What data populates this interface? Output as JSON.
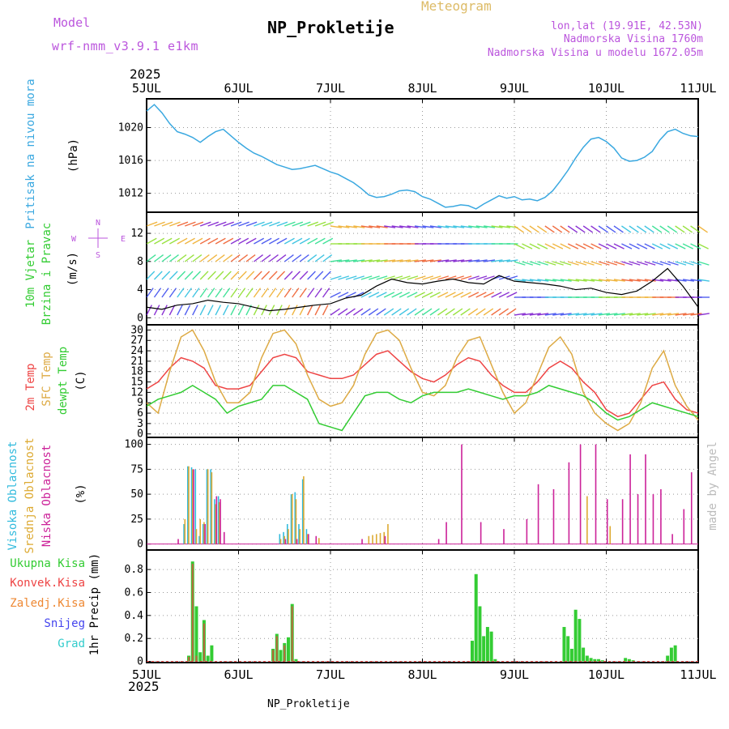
{
  "header": {
    "model_label": "Model",
    "model_name": "wrf-nmm_v3.9.1  e1km",
    "app_title": "Meteogram",
    "station_title": "NP_Prokletije",
    "lonlat": "lon,lat (19.91E, 42.53N)",
    "altitude": "Nadmorska Visina 1760m",
    "model_altitude": "Nadmorska Visina u modelu 1672.05m",
    "year_top": "2025",
    "year_bottom": "2025",
    "footer_station": "NP_Prokletije",
    "watermark": "made by Angel"
  },
  "time_axis": {
    "tick_labels": [
      "5JUL",
      "6JUL",
      "7JUL",
      "8JUL",
      "9JUL",
      "10JUL",
      "11JUL"
    ]
  },
  "panel_labels": {
    "pressure": {
      "name": "Pritisak na nivou mora",
      "unit": "(hPa)"
    },
    "wind": {
      "name1": "10m Vjetar",
      "name2": "Brzina i Pravac",
      "unit": "(m/s)",
      "compass_n": "N",
      "compass_s": "S",
      "compass_w": "W",
      "compass_e": "E"
    },
    "temp": {
      "t2m": "2m Temp",
      "sfc": "SFC Temp",
      "dew": "dewpt Temp",
      "unit": "(C)"
    },
    "cloud": {
      "high": "Visoka Oblacnost",
      "mid": "Srednja Oblacnost",
      "low": "Niska Oblacnost",
      "unit": "(%)"
    },
    "precip": {
      "total": "Ukupna Kisa",
      "conv": "Konvek.Kisa",
      "frozen": "Zaledj.Kisa",
      "snow": "Snijeg",
      "hail": "Grad",
      "axis": "1hr Precip (mm)"
    }
  },
  "colors": {
    "pressure": "#3aa8e0",
    "t2m": "#ee4444",
    "sfc": "#ddaa44",
    "dew": "#33cc33",
    "high_cloud": "#33bbdd",
    "mid_cloud": "#ddaa33",
    "low_cloud": "#cc2299",
    "precip_total": "#33cc33",
    "precip_conv": "#ee4444",
    "precip_frozen": "#ee8833",
    "snow": "#4444ee",
    "hail": "#33cccc",
    "model": "#bb55dd",
    "title_orange": "#ddbb66",
    "watermark": "#bbbbbb"
  },
  "chart_data": [
    {
      "type": "line",
      "title": "",
      "ylabel": "Pritisak na nivou mora (hPa)",
      "ylim": [
        1009.7,
        1023.5
      ],
      "yticks": [
        "1012",
        "1016",
        "1020"
      ],
      "x": [
        0,
        2,
        4,
        6,
        8,
        10,
        12,
        14,
        16,
        18,
        20,
        22,
        24,
        26,
        28,
        30,
        32,
        34,
        36,
        38,
        40,
        42,
        44,
        46,
        48,
        50,
        52,
        54,
        56,
        58,
        60,
        62,
        64,
        66,
        68,
        70,
        72,
        74,
        76,
        78,
        80,
        82,
        84,
        86,
        88,
        90,
        92,
        94,
        96,
        98,
        100,
        102,
        104,
        106,
        108,
        110,
        112,
        114,
        116,
        118,
        120,
        122,
        124,
        126,
        128,
        130,
        132,
        134,
        136,
        138,
        140,
        142,
        144
      ],
      "series": [
        {
          "values": [
            1022,
            1022.8,
            1021.8,
            1020.5,
            1019.5,
            1019.2,
            1018.8,
            1018.2,
            1018.9,
            1019.5,
            1019.8,
            1019,
            1018.2,
            1017.5,
            1016.9,
            1016.5,
            1016,
            1015.5,
            1015.2,
            1014.9,
            1015,
            1015.2,
            1015.4,
            1015,
            1014.6,
            1014.3,
            1013.8,
            1013.3,
            1012.6,
            1011.8,
            1011.5,
            1011.6,
            1011.9,
            1012.3,
            1012.4,
            1012.2,
            1011.6,
            1011.3,
            1010.8,
            1010.3,
            1010.4,
            1010.6,
            1010.5,
            1010.1,
            1010.7,
            1011.2,
            1011.7,
            1011.4,
            1011.6,
            1011.2,
            1011.3,
            1011.1,
            1011.5,
            1012.3,
            1013.5,
            1014.8,
            1016.3,
            1017.6,
            1018.6,
            1018.8,
            1018.3,
            1017.5,
            1016.3,
            1015.9,
            1016,
            1016.4,
            1017.1,
            1018.5,
            1019.5,
            1019.8,
            1019.3,
            1019,
            1018.9
          ]
        }
      ]
    },
    {
      "type": "line",
      "title": "",
      "ylabel": "10m Vjetar Brzina i Pravac (m/s)",
      "ylim": [
        -1,
        15
      ],
      "yticks": [
        "0",
        "4",
        "8",
        "12"
      ],
      "x": [
        0,
        4,
        8,
        12,
        16,
        20,
        24,
        28,
        32,
        36,
        40,
        44,
        48,
        52,
        56,
        60,
        64,
        68,
        72,
        76,
        80,
        84,
        88,
        92,
        96,
        100,
        104,
        108,
        112,
        116,
        120,
        124,
        128,
        132,
        136,
        140,
        144
      ],
      "series": [
        {
          "name": "Brzina",
          "values": [
            1.5,
            1.2,
            1.8,
            2.0,
            2.5,
            2.2,
            2.0,
            1.5,
            1.0,
            1.2,
            1.5,
            1.8,
            2.0,
            2.8,
            3.2,
            4.5,
            5.5,
            5.0,
            4.8,
            5.2,
            5.5,
            5.0,
            4.8,
            6.0,
            5.2,
            5.0,
            4.8,
            4.5,
            4.0,
            4.2,
            3.6,
            3.3,
            3.8,
            5.2,
            7.0,
            4.5,
            1.5
          ]
        }
      ]
    },
    {
      "type": "line",
      "title": "",
      "ylabel": "2m Temp, SFC Temp, dewpt Temp (C)",
      "ylim": [
        -1,
        31.5
      ],
      "yticks": [
        "0",
        "3",
        "6",
        "9",
        "12",
        "15",
        "18",
        "21",
        "24",
        "27",
        "30"
      ],
      "x": [
        0,
        3,
        6,
        9,
        12,
        15,
        18,
        21,
        24,
        27,
        30,
        33,
        36,
        39,
        42,
        45,
        48,
        51,
        54,
        57,
        60,
        63,
        66,
        69,
        72,
        75,
        78,
        81,
        84,
        87,
        90,
        93,
        96,
        99,
        102,
        105,
        108,
        111,
        114,
        117,
        120,
        123,
        126,
        129,
        132,
        135,
        138,
        141,
        144
      ],
      "series": [
        {
          "name": "2m Temp",
          "values": [
            13,
            15,
            19,
            22,
            21,
            19,
            14,
            13,
            13,
            14,
            18,
            22,
            23,
            22,
            18,
            17,
            16,
            16,
            17,
            20,
            23,
            24,
            21,
            18,
            16,
            15,
            17,
            20,
            22,
            21,
            17,
            14,
            12,
            12,
            15,
            19,
            21,
            19,
            15,
            12,
            7,
            5,
            6,
            10,
            14,
            15,
            10,
            7,
            6
          ]
        },
        {
          "name": "SFC Temp",
          "values": [
            9,
            6,
            18,
            28,
            30,
            24,
            15,
            9,
            9,
            12,
            22,
            29,
            30,
            26,
            17,
            10,
            8,
            9,
            14,
            23,
            29,
            30,
            27,
            19,
            12,
            11,
            14,
            22,
            27,
            28,
            20,
            12,
            6,
            9,
            17,
            25,
            28,
            23,
            12,
            6,
            3,
            1,
            3,
            9,
            19,
            24,
            14,
            8,
            4
          ]
        },
        {
          "name": "dewpt Temp",
          "values": [
            8,
            10,
            11,
            12,
            14,
            12,
            10,
            6,
            8,
            9,
            10,
            14,
            14,
            12,
            10,
            3,
            2,
            1,
            6,
            11,
            12,
            12,
            10,
            9,
            11,
            12,
            12,
            12,
            13,
            12,
            11,
            10,
            11,
            11,
            12,
            14,
            13,
            12,
            11,
            9,
            6,
            4,
            5,
            7,
            9,
            8,
            7,
            6,
            5
          ]
        }
      ]
    },
    {
      "type": "bar",
      "title": "",
      "ylabel": "Oblacnost (%)",
      "ylim": [
        -6,
        107
      ],
      "yticks": [
        "0",
        "25",
        "50",
        "75",
        "100"
      ],
      "series": [
        {
          "name": "Visoka Oblacnost",
          "x": [
            10,
            11,
            12,
            13,
            14,
            15,
            16,
            17,
            18,
            19,
            35,
            36,
            37,
            38,
            39,
            40,
            41,
            42
          ],
          "values": [
            20,
            78,
            77,
            75,
            8,
            20,
            75,
            75,
            45,
            48,
            10,
            12,
            20,
            50,
            52,
            20,
            65,
            15
          ]
        },
        {
          "name": "Srednja Oblacnost",
          "x": [
            10,
            11,
            12,
            13,
            14,
            15,
            16,
            17,
            18,
            19,
            35,
            36,
            37,
            38,
            39,
            40,
            41,
            42,
            45,
            58,
            59,
            60,
            61,
            62,
            63,
            115,
            121
          ],
          "values": [
            25,
            78,
            75,
            15,
            25,
            22,
            75,
            72,
            40,
            42,
            5,
            8,
            15,
            50,
            45,
            15,
            68,
            10,
            6,
            8,
            9,
            10,
            11,
            12,
            20,
            48,
            18
          ]
        },
        {
          "name": "Niska Oblacnost",
          "x": [
            8,
            12,
            15,
            18,
            19,
            20,
            36,
            39,
            42,
            44,
            56,
            62,
            76,
            78,
            82,
            87,
            93,
            99,
            102,
            106,
            110,
            113,
            117,
            120,
            124,
            126,
            128,
            130,
            132,
            134,
            137,
            140,
            142
          ],
          "values": [
            5,
            75,
            20,
            48,
            45,
            12,
            5,
            5,
            10,
            8,
            5,
            8,
            5,
            22,
            100,
            22,
            15,
            25,
            60,
            55,
            82,
            100,
            100,
            45,
            45,
            90,
            50,
            90,
            50,
            55,
            10,
            35,
            72
          ]
        }
      ]
    },
    {
      "type": "bar",
      "title": "",
      "ylabel": "1hr Precip (mm)",
      "ylim": [
        -0.01,
        0.97
      ],
      "yticks": [
        "0",
        "0.2",
        "0.4",
        "0.6",
        "0.8"
      ],
      "series": [
        {
          "name": "Ukupna Kisa",
          "x": [
            11,
            12,
            13,
            14,
            15,
            16,
            17,
            33,
            34,
            35,
            36,
            37,
            38,
            39,
            85,
            86,
            87,
            88,
            89,
            90,
            91,
            109,
            110,
            111,
            112,
            113,
            114,
            115,
            116,
            117,
            118,
            119,
            125,
            126,
            127,
            136,
            137,
            138
          ],
          "values": [
            0.05,
            0.87,
            0.48,
            0.08,
            0.36,
            0.05,
            0.14,
            0.11,
            0.24,
            0.1,
            0.16,
            0.21,
            0.5,
            0.02,
            0.18,
            0.76,
            0.48,
            0.22,
            0.3,
            0.26,
            0.02,
            0.3,
            0.22,
            0.11,
            0.45,
            0.37,
            0.12,
            0.05,
            0.03,
            0.02,
            0.02,
            0.01,
            0.03,
            0.02,
            0.01,
            0.05,
            0.12,
            0.14
          ]
        },
        {
          "name": "Konvek.Kisa",
          "x": [
            11,
            12,
            13,
            15,
            33,
            34,
            36,
            38
          ],
          "values": [
            0.04,
            0.85,
            0.05,
            0.33,
            0.1,
            0.22,
            0.14,
            0.48
          ]
        },
        {
          "name": "Zaledj.Kisa",
          "x": [],
          "values": []
        },
        {
          "name": "Snijeg",
          "x": [],
          "values": []
        },
        {
          "name": "Grad",
          "x": [],
          "values": []
        }
      ]
    }
  ]
}
